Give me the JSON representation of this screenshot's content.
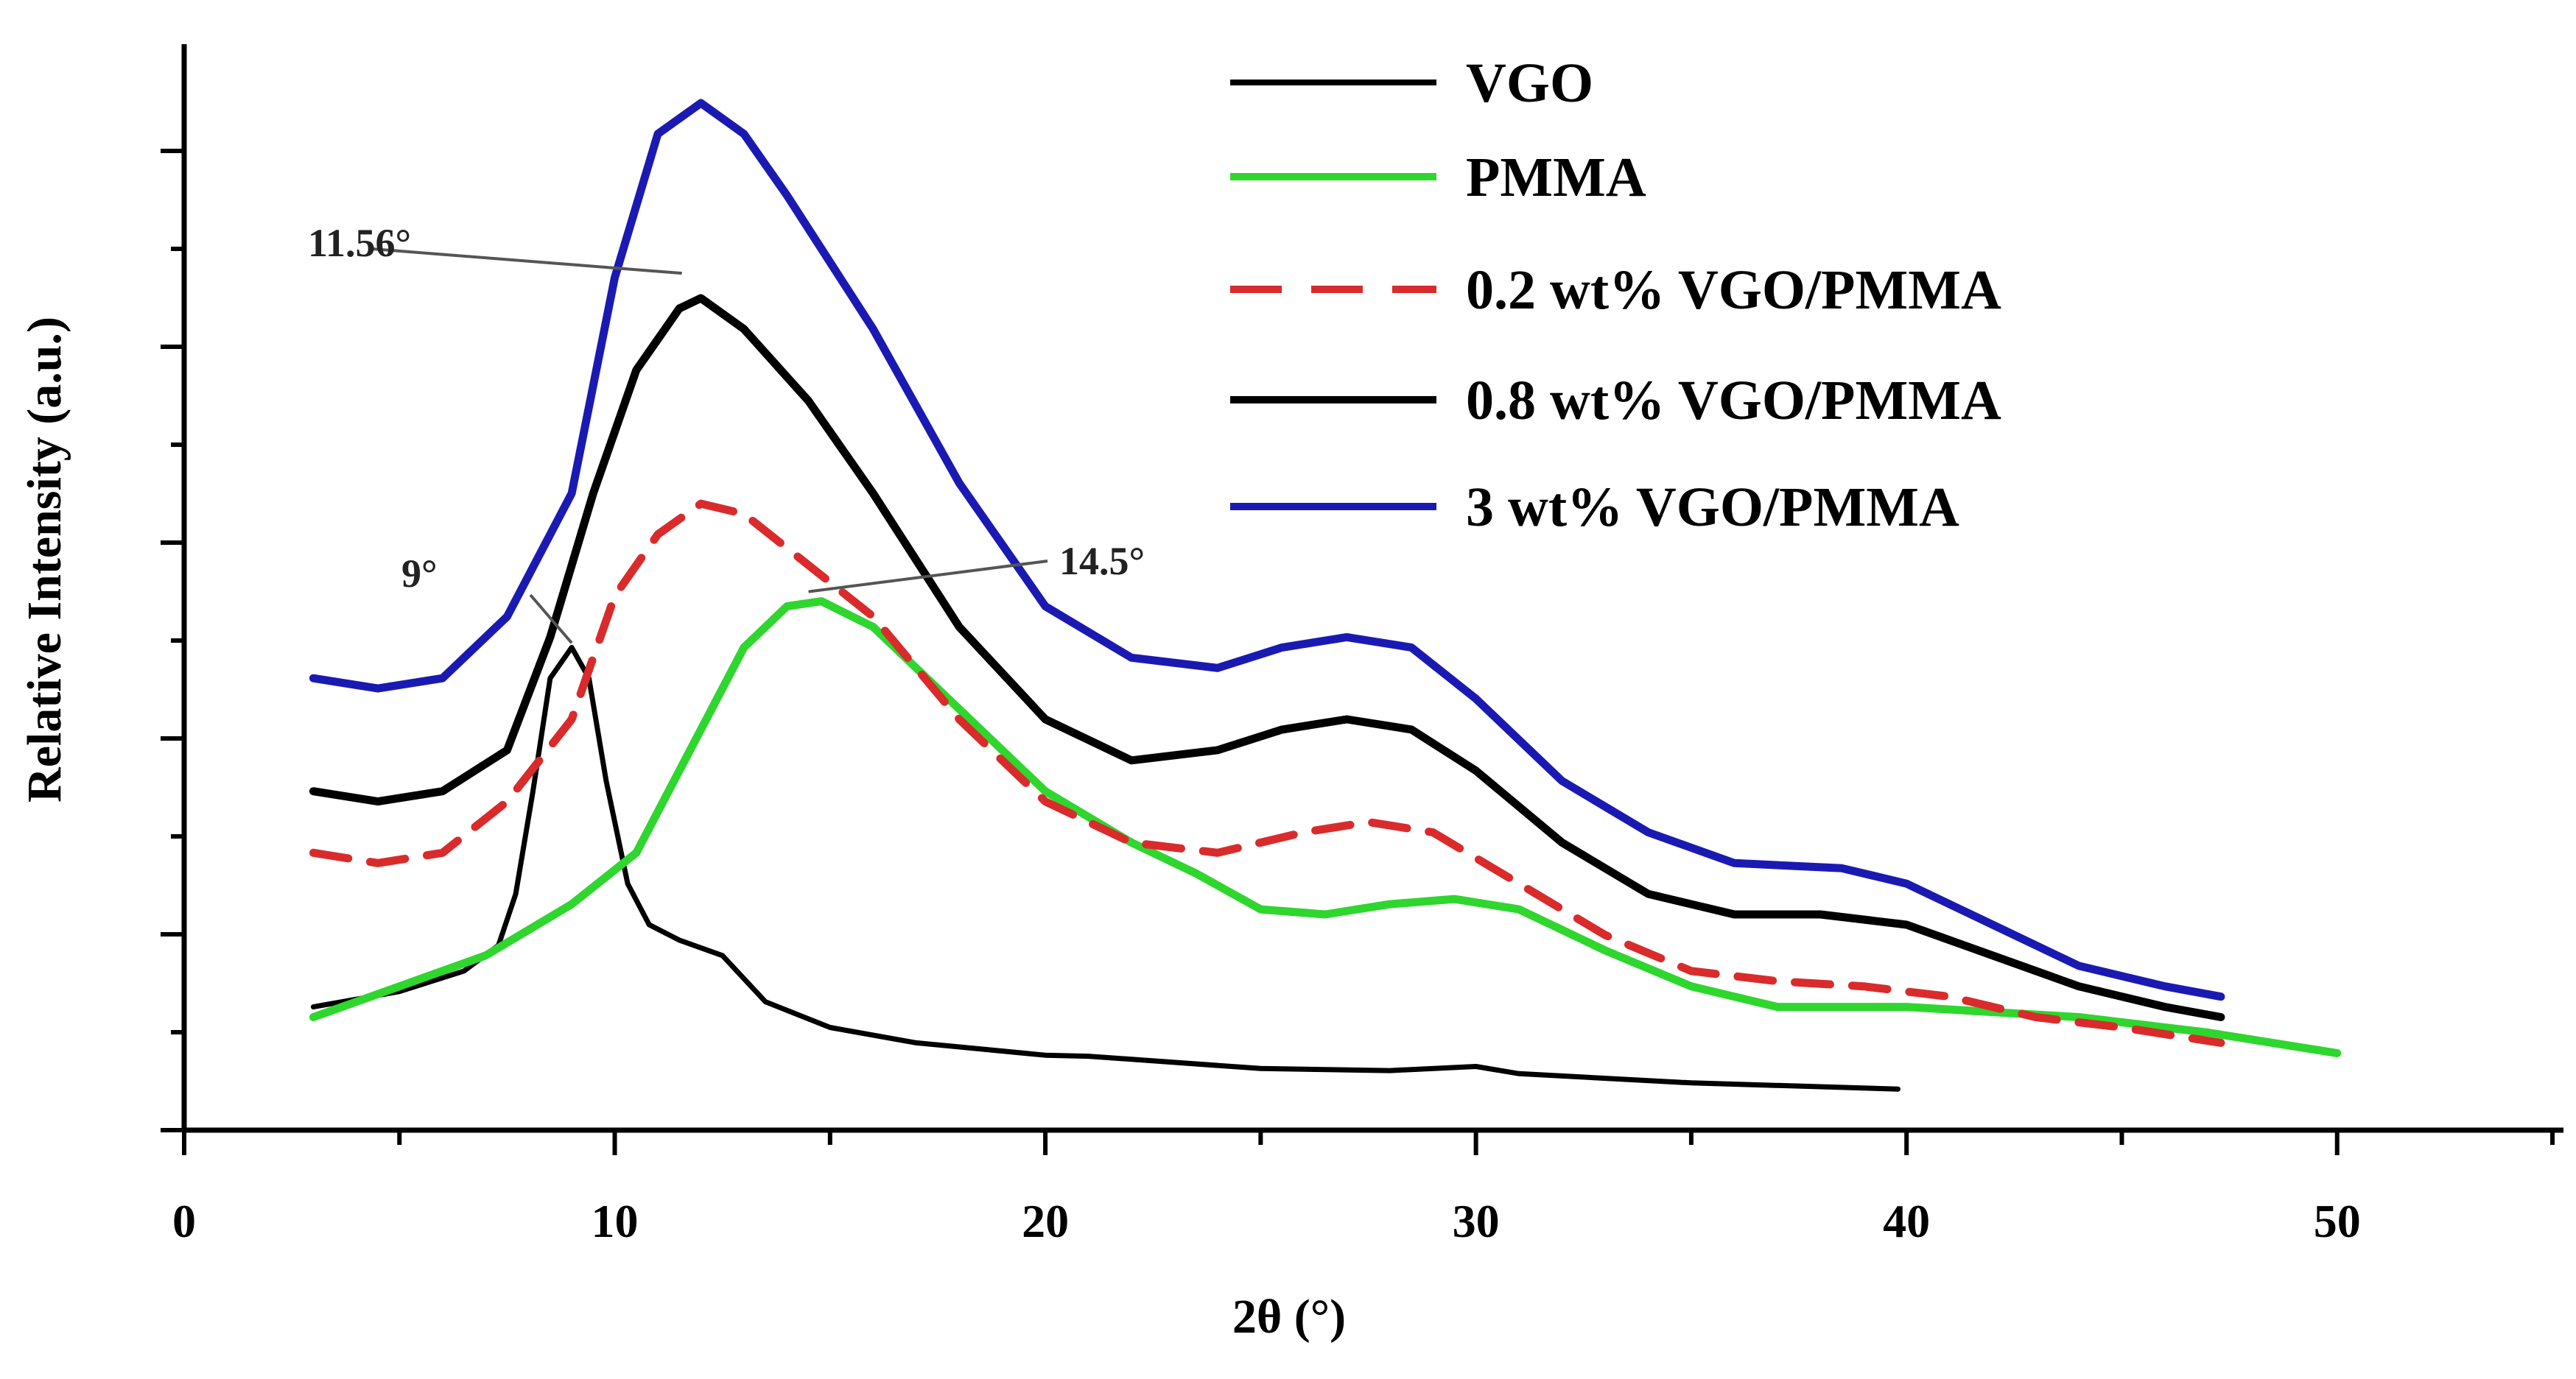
{
  "chart_data": {
    "type": "line",
    "title": "",
    "xlabel": "2θ (°)",
    "ylabel": "Relative Intensity (a.u.)",
    "xlim": [
      0,
      55
    ],
    "ylim": [
      0,
      100
    ],
    "x_ticks": [
      "0",
      "10",
      "20",
      "30",
      "40",
      "50"
    ],
    "grid": false,
    "legend_position": "top-right",
    "series": [
      {
        "name": "VGO",
        "color": "#000000",
        "style": "solid",
        "points": [
          [
            3,
            12
          ],
          [
            5,
            13.5
          ],
          [
            6.5,
            15.5
          ],
          [
            7.3,
            18
          ],
          [
            7.7,
            23
          ],
          [
            8.1,
            33
          ],
          [
            8.5,
            44
          ],
          [
            9,
            47
          ],
          [
            9.4,
            44
          ],
          [
            9.8,
            34
          ],
          [
            10.3,
            24
          ],
          [
            10.8,
            20
          ],
          [
            11.5,
            18.5
          ],
          [
            12.5,
            17
          ],
          [
            13.5,
            12.5
          ],
          [
            15,
            10
          ],
          [
            17,
            8.5
          ],
          [
            20,
            7.3
          ],
          [
            21,
            7.2
          ],
          [
            25,
            6
          ],
          [
            28,
            5.8
          ],
          [
            30,
            6.2
          ],
          [
            31,
            5.5
          ],
          [
            35,
            4.6
          ],
          [
            39.8,
            4
          ]
        ]
      },
      {
        "name": "PMMA",
        "color": "#2ed62e",
        "style": "solid",
        "points": [
          [
            3,
            11
          ],
          [
            5,
            14
          ],
          [
            7,
            17
          ],
          [
            9,
            22
          ],
          [
            10.5,
            27
          ],
          [
            12,
            39
          ],
          [
            13,
            47
          ],
          [
            14,
            51
          ],
          [
            14.8,
            51.5
          ],
          [
            16,
            49
          ],
          [
            18,
            41
          ],
          [
            20,
            33
          ],
          [
            22,
            28
          ],
          [
            23.5,
            25
          ],
          [
            25,
            21.5
          ],
          [
            26.5,
            21
          ],
          [
            28,
            22
          ],
          [
            29.5,
            22.5
          ],
          [
            31,
            21.5
          ],
          [
            33,
            17.5
          ],
          [
            35,
            14
          ],
          [
            37,
            12
          ],
          [
            40,
            12
          ],
          [
            42,
            11.5
          ],
          [
            44,
            11
          ],
          [
            47,
            9.5
          ],
          [
            50,
            7.5
          ]
        ]
      },
      {
        "name": "0.2 wt% VGO/PMMA",
        "color": "#d92b2b",
        "style": "dashed",
        "points": [
          [
            3,
            27
          ],
          [
            4.5,
            26
          ],
          [
            6,
            27
          ],
          [
            7.5,
            32
          ],
          [
            9,
            40
          ],
          [
            10,
            52
          ],
          [
            11,
            58
          ],
          [
            12,
            61
          ],
          [
            13,
            60
          ],
          [
            14.5,
            55
          ],
          [
            16,
            50
          ],
          [
            18,
            40
          ],
          [
            20,
            32
          ],
          [
            22,
            28
          ],
          [
            24,
            27
          ],
          [
            26,
            29
          ],
          [
            27.5,
            30
          ],
          [
            29,
            29
          ],
          [
            31,
            24
          ],
          [
            33,
            19
          ],
          [
            35,
            15.5
          ],
          [
            37,
            14.5
          ],
          [
            39,
            14
          ],
          [
            41,
            13
          ],
          [
            43,
            11
          ],
          [
            45,
            10
          ],
          [
            47.3,
            8.5
          ]
        ]
      },
      {
        "name": "0.8 wt% VGO/PMMA",
        "color": "#000000",
        "style": "solid",
        "points": [
          [
            3,
            33
          ],
          [
            4.5,
            32
          ],
          [
            6,
            33
          ],
          [
            7.5,
            37
          ],
          [
            8.5,
            48
          ],
          [
            9.5,
            62
          ],
          [
            10.5,
            74
          ],
          [
            11.5,
            80
          ],
          [
            12,
            81
          ],
          [
            13,
            78
          ],
          [
            14.5,
            71
          ],
          [
            16,
            62
          ],
          [
            18,
            49
          ],
          [
            20,
            40
          ],
          [
            22,
            36
          ],
          [
            24,
            37
          ],
          [
            25.5,
            39
          ],
          [
            27,
            40
          ],
          [
            28.5,
            39
          ],
          [
            30,
            35
          ],
          [
            32,
            28
          ],
          [
            34,
            23
          ],
          [
            36,
            21
          ],
          [
            38,
            21
          ],
          [
            40,
            20
          ],
          [
            42,
            17
          ],
          [
            44,
            14
          ],
          [
            46,
            12
          ],
          [
            47.3,
            11
          ]
        ]
      },
      {
        "name": "3 wt% VGO/PMMA",
        "color": "#1a1ab3",
        "style": "solid",
        "points": [
          [
            3,
            44
          ],
          [
            4.5,
            43
          ],
          [
            6,
            44
          ],
          [
            7.5,
            50
          ],
          [
            9,
            62
          ],
          [
            10,
            83
          ],
          [
            11,
            97
          ],
          [
            12,
            100
          ],
          [
            13,
            97
          ],
          [
            14,
            91
          ],
          [
            16,
            78
          ],
          [
            18,
            63
          ],
          [
            20,
            51
          ],
          [
            22,
            46
          ],
          [
            24,
            45
          ],
          [
            25.5,
            47
          ],
          [
            27,
            48
          ],
          [
            28.5,
            47
          ],
          [
            30,
            42
          ],
          [
            32,
            34
          ],
          [
            34,
            29
          ],
          [
            36,
            26
          ],
          [
            38.5,
            25.5
          ],
          [
            40,
            24
          ],
          [
            42,
            20
          ],
          [
            44,
            16
          ],
          [
            46,
            14
          ],
          [
            47.3,
            13
          ]
        ]
      }
    ],
    "annotations": [
      {
        "text": "11.56°",
        "x": 11.56,
        "y": 83
      },
      {
        "text": "14.5°",
        "x": 14.5,
        "y": 52
      },
      {
        "text": "9°",
        "x": 9,
        "y": 47
      }
    ]
  }
}
